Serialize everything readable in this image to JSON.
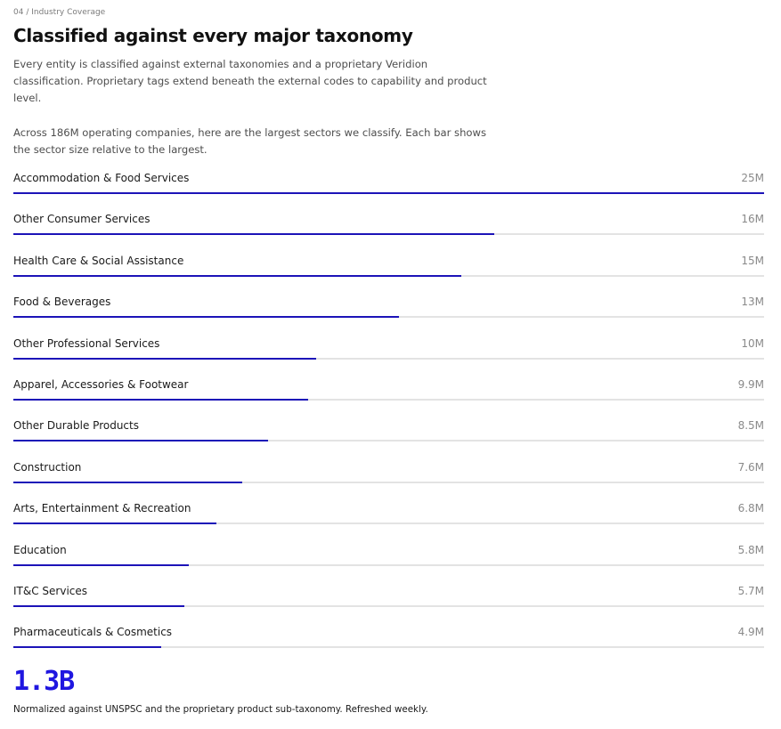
{
  "section": {
    "eyebrow": "04 / Industry Coverage",
    "title": "Classified against every major taxonomy",
    "description": "Every entity is classified against external taxonomies and a proprietary Veridion classification. Proprietary tags extend beneath the external codes to capability and product level.",
    "chart_intro": "Across 186M operating companies, here are the largest sectors we classify. Each bar shows the sector size relative to the largest."
  },
  "colors": {
    "accent": "#1c13b8",
    "stat_accent": "#1f16e0",
    "track": "#e3e3e3"
  },
  "chart_data": {
    "type": "bar",
    "orientation": "horizontal",
    "categories": [
      "Accommodation & Food Services",
      "Other Consumer Services",
      "Health Care & Social Assistance",
      "Food & Beverages",
      "Other Professional Services",
      "Apparel, Accessories & Footwear",
      "Other Durable Products",
      "Construction",
      "Arts, Entertainment & Recreation",
      "Education",
      "IT&C Services",
      "Pharmaceuticals & Cosmetics"
    ],
    "value_labels": [
      "25M",
      "16M",
      "15M",
      "13M",
      "10M",
      "9.9M",
      "8.5M",
      "7.6M",
      "6.8M",
      "5.8M",
      "5.7M",
      "4.9M"
    ],
    "values": [
      25,
      16,
      15,
      13,
      10,
      9.9,
      8.5,
      7.6,
      6.8,
      5.8,
      5.7,
      4.9
    ],
    "fill_fraction": [
      1.0,
      0.64,
      0.597,
      0.514,
      0.403,
      0.393,
      0.339,
      0.305,
      0.27,
      0.234,
      0.228,
      0.197
    ],
    "xlim": [
      0,
      25
    ]
  },
  "stat": {
    "value": "1.3B",
    "caption": "Normalized against UNSPSC and the proprietary product sub-taxonomy. Refreshed weekly."
  }
}
